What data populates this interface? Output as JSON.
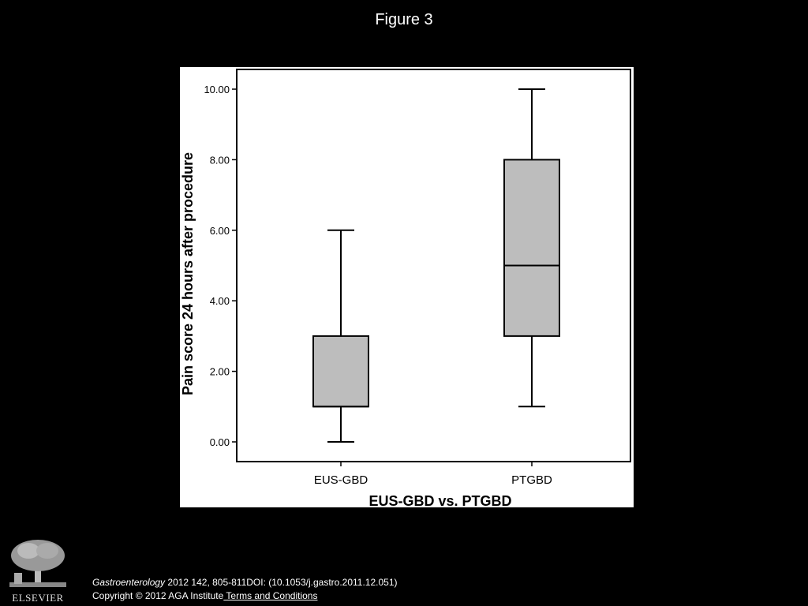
{
  "slide": {
    "title": "Figure 3"
  },
  "chart_data": {
    "type": "box",
    "xlabel": "EUS-GBD vs. PTGBD",
    "ylabel": "Pain score 24 hours after procedure",
    "ylim": [
      0,
      10
    ],
    "yticks": [
      "0.00",
      "2.00",
      "4.00",
      "6.00",
      "8.00",
      "10.00"
    ],
    "ytick_values": [
      0,
      2,
      4,
      6,
      8,
      10
    ],
    "categories": [
      "EUS-GBD",
      "PTGBD"
    ],
    "boxes": [
      {
        "name": "EUS-GBD",
        "min": 0,
        "q1": 1,
        "median": 1,
        "q3": 3,
        "max": 6
      },
      {
        "name": "PTGBD",
        "min": 1,
        "q1": 3,
        "median": 5,
        "q3": 8,
        "max": 10
      }
    ],
    "box_color": "#bdbdbd",
    "grid": false
  },
  "citation": {
    "journal": "Gastroenterology",
    "details": " 2012 142, 805-811DOI: (10.1053/j.gastro.2011.12.051)",
    "copyright": "Copyright © 2012 AGA Institute",
    "terms_link": " Terms and Conditions"
  },
  "logo": {
    "word": "ELSEVIER",
    "icon": "elsevier-tree-icon"
  }
}
